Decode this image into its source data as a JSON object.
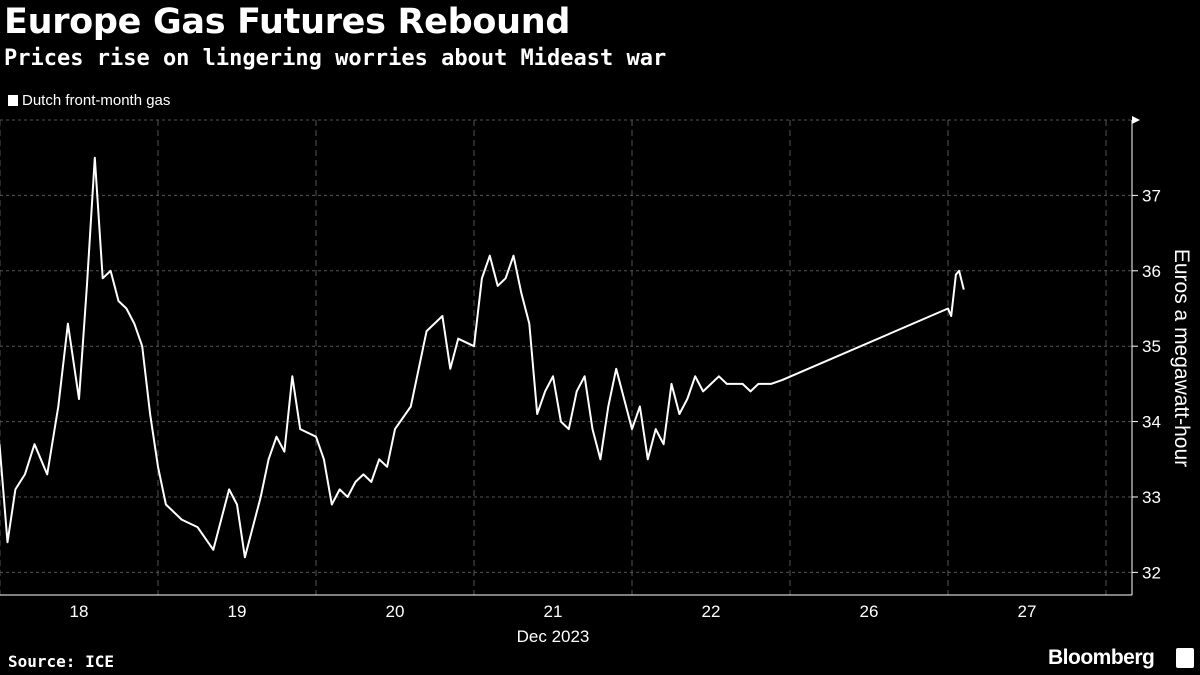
{
  "header": {
    "title": "Europe Gas Futures Rebound",
    "subtitle": "Prices rise on lingering worries about Mideast war"
  },
  "legend": {
    "label": "Dutch front-month gas"
  },
  "footer": {
    "source": "Source: ICE",
    "brand": "Bloomberg"
  },
  "colors": {
    "background": "#000000",
    "line": "#ffffff",
    "grid": "#555555"
  },
  "chart_data": {
    "type": "line",
    "title": "Europe Gas Futures Rebound",
    "subtitle": "Prices rise on lingering worries about Mideast war",
    "ylabel": "Euros a megawatt-hour",
    "xlabel": "Dec 2023",
    "x_tick_labels": [
      "18",
      "19",
      "20",
      "21",
      "22",
      "26",
      "27"
    ],
    "y_ticks": [
      32,
      33,
      34,
      35,
      36,
      37
    ],
    "ylim": [
      31.7,
      38.0
    ],
    "grid": "dashed",
    "legend_position": "top-left",
    "series": [
      {
        "name": "Dutch front-month gas",
        "x": [
          17.5,
          17.55,
          17.6,
          17.66,
          17.72,
          17.8,
          17.87,
          17.93,
          18.0,
          18.05,
          18.1,
          18.15,
          18.2,
          18.25,
          18.3,
          18.35,
          18.4,
          18.45,
          18.5,
          18.55,
          18.65,
          18.75,
          18.85,
          18.95,
          19.0,
          19.05,
          19.1,
          19.15,
          19.2,
          19.25,
          19.3,
          19.35,
          19.4,
          19.5,
          19.55,
          19.6,
          19.65,
          19.7,
          19.75,
          19.8,
          19.85,
          19.9,
          19.95,
          20.0,
          20.1,
          20.2,
          20.3,
          20.35,
          20.4,
          20.5,
          20.55,
          20.6,
          20.65,
          20.7,
          20.75,
          20.8,
          20.85,
          20.9,
          20.95,
          21.0,
          21.05,
          21.1,
          21.15,
          21.2,
          21.25,
          21.3,
          21.35,
          21.4,
          21.5,
          21.55,
          21.6,
          21.65,
          21.7,
          21.75,
          21.8,
          21.85,
          21.9,
          21.95,
          22.0,
          22.05,
          22.1,
          22.15,
          22.2,
          22.25,
          22.3,
          22.38,
          22.45,
          26.5,
          26.52,
          26.55,
          26.57,
          26.6
        ],
        "y": [
          33.7,
          32.4,
          33.1,
          33.3,
          33.7,
          33.3,
          34.2,
          35.3,
          34.3,
          35.8,
          37.5,
          35.9,
          36.0,
          35.6,
          35.5,
          35.3,
          35.0,
          34.1,
          33.4,
          32.9,
          32.7,
          32.6,
          32.3,
          33.1,
          32.9,
          32.2,
          32.6,
          33.0,
          33.5,
          33.8,
          33.6,
          34.6,
          33.9,
          33.8,
          33.5,
          32.9,
          33.1,
          33.0,
          33.2,
          33.3,
          33.2,
          33.5,
          33.4,
          33.9,
          34.2,
          35.2,
          35.4,
          34.7,
          35.1,
          35.0,
          35.9,
          36.2,
          35.8,
          35.9,
          36.2,
          35.7,
          35.3,
          34.1,
          34.4,
          34.6,
          34.0,
          33.9,
          34.4,
          34.6,
          33.9,
          33.5,
          34.2,
          34.7,
          33.9,
          34.2,
          33.5,
          33.9,
          33.7,
          34.5,
          34.1,
          34.3,
          34.6,
          34.4,
          34.5,
          34.6,
          34.5,
          34.5,
          34.5,
          34.4,
          34.5,
          34.5,
          34.55,
          35.5,
          35.4,
          35.95,
          36.0,
          35.75
        ]
      }
    ]
  }
}
